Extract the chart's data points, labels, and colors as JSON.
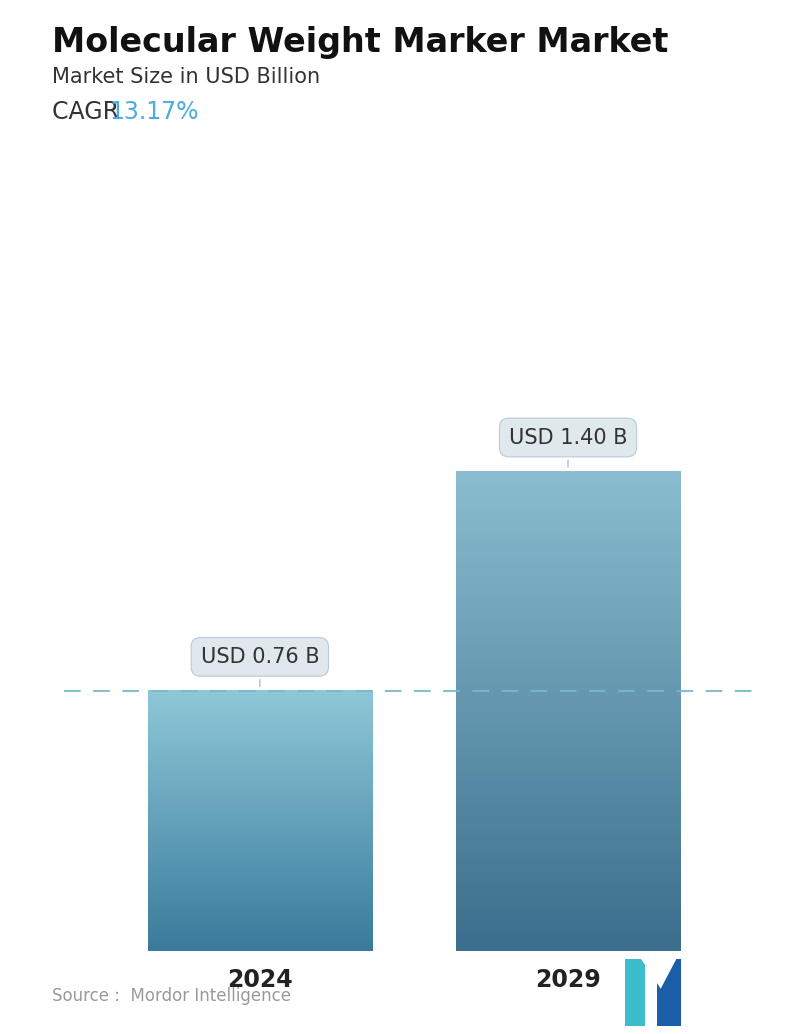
{
  "title": "Molecular Weight Marker Market",
  "subtitle": "Market Size in USD Billion",
  "cagr_label": "CAGR ",
  "cagr_value": "13.17%",
  "cagr_color": "#4AACE0",
  "categories": [
    "2024",
    "2029"
  ],
  "values": [
    0.76,
    1.4
  ],
  "bar_labels": [
    "USD 0.76 B",
    "USD 1.40 B"
  ],
  "bar_top_color": [
    "#8EC8D8",
    "#8BBDD0"
  ],
  "bar_bottom_color": [
    "#3A7B9C",
    "#3A6E8C"
  ],
  "dashed_line_y": 0.76,
  "dashed_line_color": "#7AB8CC",
  "source_text": "Source :  Mordor Intelligence",
  "background_color": "#FFFFFF",
  "ylim": [
    0,
    1.75
  ],
  "title_fontsize": 24,
  "subtitle_fontsize": 15,
  "cagr_fontsize": 17,
  "tick_fontsize": 17,
  "label_fontsize": 15,
  "source_fontsize": 12,
  "bar_positions": [
    0.28,
    0.72
  ],
  "bar_width": 0.32,
  "xlim": [
    0.0,
    1.0
  ]
}
